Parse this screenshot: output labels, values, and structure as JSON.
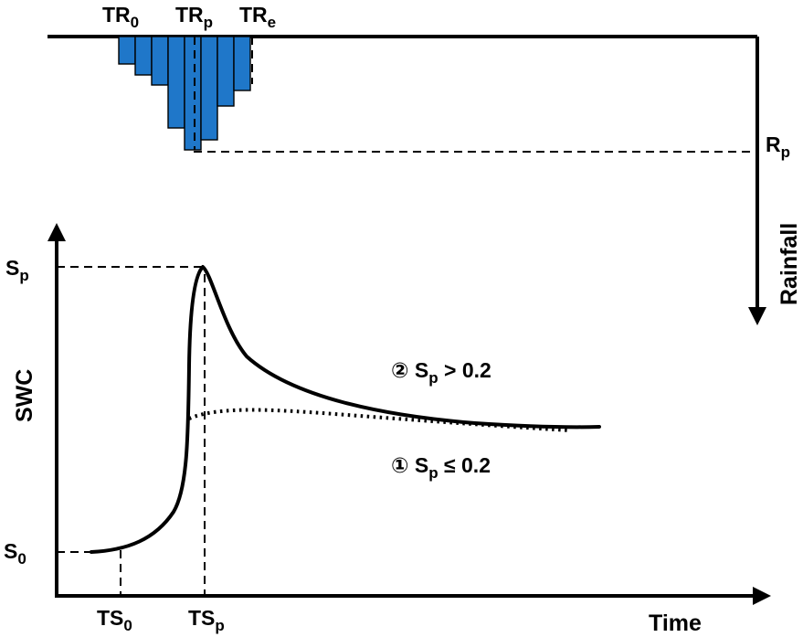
{
  "rainfall": {
    "axis_label": "Rainfall",
    "tr_start": {
      "base": "TR",
      "sub": "0"
    },
    "tr_peak": {
      "base": "TR",
      "sub": "p"
    },
    "tr_end": {
      "base": "TR",
      "sub": "e"
    },
    "peak_label": {
      "base": "R",
      "sub": "p"
    },
    "bar_color": "#1f77c9"
  },
  "swc": {
    "y_axis_label": "SWC",
    "x_axis_label": "Time",
    "peak_value": {
      "base": "S",
      "sub": "p"
    },
    "initial_value": {
      "base": "S",
      "sub": "0"
    },
    "ts_start": {
      "base": "TS",
      "sub": "0"
    },
    "ts_peak": {
      "base": "TS",
      "sub": "p"
    },
    "case_2": {
      "prefix": "② S",
      "sub": "p",
      "suffix": " > 0.2"
    },
    "case_1": {
      "prefix": "① S",
      "sub": "p",
      "suffix": " ≤ 0.2"
    }
  }
}
